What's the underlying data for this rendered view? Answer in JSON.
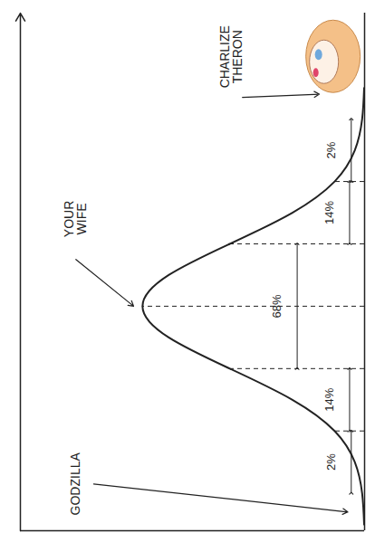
{
  "chart_data": {
    "type": "area",
    "color": "#222222",
    "curve": {
      "z": [
        -3.5,
        -3,
        -2.5,
        -2,
        -1.5,
        -1,
        -0.5,
        0,
        0.5,
        1,
        1.5,
        2,
        2.5,
        3,
        3.5
      ],
      "density": [
        0.002,
        0.011,
        0.044,
        0.135,
        0.325,
        0.607,
        0.882,
        1,
        0.882,
        0.607,
        0.325,
        0.135,
        0.044,
        0.011,
        0.002
      ]
    },
    "dividers": [
      -2,
      -1,
      0,
      1,
      2
    ],
    "segments": {
      "bins": [
        -3,
        -2,
        -1,
        1,
        2,
        3
      ],
      "values": [
        2,
        14,
        68,
        14,
        2
      ],
      "value_labels": [
        "2%",
        "14%",
        "68%",
        "14%",
        "2%"
      ]
    },
    "annotations": [
      {
        "text": "GODZILLA",
        "z": -3.3
      },
      {
        "text": "YOUR WIFE",
        "z": 0
      },
      {
        "text": "CHARLIZE THERON",
        "z": 3.4
      }
    ],
    "xlim": [
      -3.6,
      4.7
    ],
    "ylim": [
      0,
      1.55
    ],
    "data_labels": true,
    "tick_labels": false
  }
}
